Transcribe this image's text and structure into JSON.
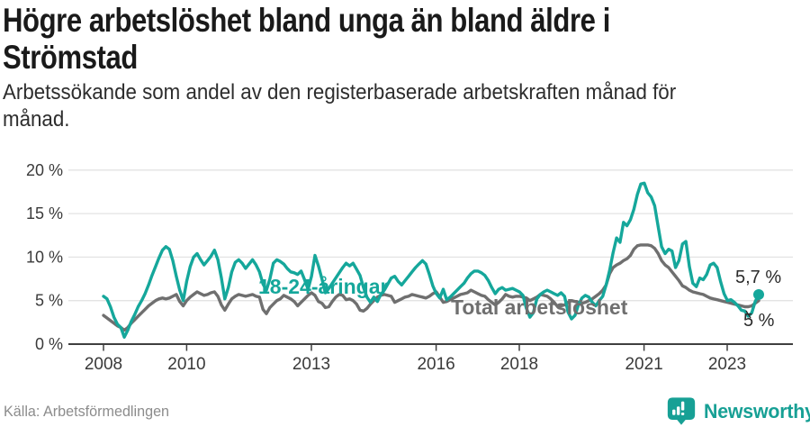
{
  "header": {
    "title": "Högre arbetslöshet bland unga än bland äldre i Strömstad",
    "subtitle": "Arbetssökande som andel av den registerbaserade arbetskraften månad för månad."
  },
  "footer": {
    "source": "Källa: Arbetsförmedlingen",
    "brand": "Newsworthy"
  },
  "colors": {
    "youth": "#15a79b",
    "total": "#6f6f6f",
    "grid": "#e3e3e3",
    "axis": "#3f3f3f",
    "tick_text": "#3a3a3a",
    "annotation_text": "#2b2b2b",
    "brand_teal": "#17a095"
  },
  "chart_data": {
    "type": "line",
    "title": "Högre arbetslöshet bland unga än bland äldre i Strömstad",
    "subtitle": "Arbetssökande som andel av den registerbaserade arbetskraften månad för månad.",
    "x_unit": "month",
    "x_start": "2008-01",
    "x_end": "2023-10",
    "x_tick_years": [
      2008,
      2010,
      2013,
      2016,
      2018,
      2021,
      2023
    ],
    "y_ticks": [
      0,
      5,
      10,
      15,
      20
    ],
    "y_tick_suffix": " %",
    "ylim": [
      0,
      20
    ],
    "grid": true,
    "legend_position": "inline-labels",
    "series": [
      {
        "name": "18-24-åringar",
        "color": "#15a79b",
        "end_label": "5,7 %",
        "end_dot": true,
        "values": [
          5.5,
          5.2,
          4.3,
          3.1,
          2.3,
          1.9,
          0.8,
          1.6,
          2.6,
          3.4,
          4.3,
          5.0,
          5.8,
          6.8,
          7.9,
          8.9,
          9.9,
          10.8,
          11.2,
          10.9,
          9.6,
          7.8,
          6.2,
          5.0,
          7.2,
          8.9,
          10.0,
          10.4,
          9.7,
          9.1,
          9.6,
          10.1,
          10.8,
          9.7,
          7.6,
          5.2,
          6.5,
          8.3,
          9.4,
          9.7,
          9.3,
          8.7,
          9.2,
          9.7,
          9.1,
          8.3,
          6.9,
          6.2,
          7.5,
          9.3,
          9.7,
          9.5,
          9.2,
          8.7,
          8.3,
          8.2,
          8.0,
          8.4,
          7.4,
          6.3,
          7.8,
          10.2,
          9.0,
          7.5,
          5.9,
          6.4,
          7.0,
          7.6,
          8.2,
          8.8,
          9.3,
          9.0,
          9.3,
          8.6,
          7.9,
          6.5,
          5.4,
          4.8,
          5.4,
          4.9,
          5.7,
          6.2,
          6.9,
          7.6,
          7.8,
          7.2,
          6.8,
          7.3,
          7.8,
          8.3,
          8.8,
          9.2,
          9.6,
          9.2,
          8.0,
          6.7,
          5.8,
          5.3,
          6.3,
          5.1,
          5.4,
          5.8,
          6.2,
          6.6,
          7.0,
          7.6,
          8.1,
          8.4,
          8.4,
          8.2,
          7.9,
          7.3,
          6.5,
          5.8,
          6.3,
          6.5,
          6.2,
          6.3,
          6.4,
          6.2,
          6.0,
          5.6,
          4.1,
          3.1,
          3.6,
          5.2,
          5.7,
          6.0,
          6.2,
          6.0,
          5.8,
          5.6,
          5.9,
          5.5,
          3.7,
          2.9,
          3.3,
          4.5,
          5.3,
          5.6,
          5.4,
          4.8,
          4.4,
          5.0,
          5.5,
          6.8,
          8.5,
          10.5,
          12.2,
          11.7,
          14.0,
          13.6,
          14.3,
          15.5,
          17.2,
          18.4,
          18.5,
          17.4,
          16.9,
          15.9,
          13.5,
          11.2,
          10.4,
          10.9,
          10.7,
          8.8,
          9.6,
          11.5,
          11.8,
          8.9,
          7.0,
          6.6,
          7.6,
          7.4,
          8.0,
          9.1,
          9.3,
          8.8,
          7.2,
          5.8,
          5.0,
          5.1,
          4.8,
          4.4,
          3.9,
          3.8,
          3.2,
          3.6,
          4.9,
          5.7
        ]
      },
      {
        "name": "Total arbetslöshet",
        "color": "#6f6f6f",
        "end_label": "5 %",
        "end_dot": false,
        "values": [
          3.3,
          3.0,
          2.7,
          2.4,
          2.1,
          1.9,
          1.6,
          1.9,
          2.4,
          2.8,
          3.2,
          3.6,
          4.0,
          4.4,
          4.7,
          5.0,
          5.2,
          5.3,
          5.2,
          5.3,
          5.5,
          5.7,
          4.9,
          4.4,
          5.0,
          5.4,
          5.7,
          6.0,
          5.8,
          5.6,
          5.7,
          5.9,
          6.0,
          5.5,
          4.5,
          3.9,
          4.6,
          5.2,
          5.5,
          5.7,
          5.6,
          5.5,
          5.6,
          5.7,
          5.5,
          5.4,
          4.0,
          3.5,
          4.2,
          4.6,
          5.0,
          5.2,
          5.6,
          5.4,
          5.2,
          4.9,
          4.4,
          4.8,
          5.2,
          5.6,
          5.9,
          5.6,
          4.9,
          4.7,
          4.2,
          4.3,
          4.9,
          5.4,
          5.7,
          5.6,
          5.1,
          5.2,
          5.0,
          4.6,
          3.9,
          3.8,
          4.1,
          4.6,
          5.0,
          5.4,
          5.6,
          5.7,
          5.6,
          5.5,
          4.8,
          5.0,
          5.2,
          5.4,
          5.5,
          5.7,
          5.6,
          5.5,
          5.4,
          5.3,
          5.5,
          5.8,
          6.0,
          5.4,
          4.8,
          4.9,
          5.1,
          5.3,
          5.5,
          5.7,
          5.8,
          5.9,
          6.2,
          6.0,
          5.8,
          5.6,
          5.5,
          5.1,
          4.8,
          4.5,
          4.8,
          5.2,
          5.7,
          5.5,
          5.4,
          5.5,
          5.5,
          5.4,
          5.3,
          5.0,
          5.2,
          5.4,
          5.7,
          5.6,
          5.5,
          5.2,
          4.8,
          4.3,
          4.4,
          4.5,
          4.8,
          5.0,
          4.9,
          4.8,
          4.7,
          4.8,
          5.0,
          5.2,
          5.5,
          5.8,
          6.2,
          6.8,
          8.1,
          8.8,
          9.1,
          9.3,
          9.6,
          9.8,
          10.2,
          10.9,
          11.3,
          11.4,
          11.4,
          11.4,
          11.3,
          11.0,
          10.4,
          9.6,
          9.1,
          8.8,
          8.3,
          7.8,
          7.3,
          6.7,
          6.5,
          6.2,
          6.0,
          5.9,
          5.8,
          5.7,
          5.5,
          5.3,
          5.2,
          5.1,
          5.0,
          4.9,
          4.8,
          4.7,
          4.6,
          4.5,
          4.4,
          4.3,
          4.3,
          4.4,
          4.7,
          5.0
        ]
      }
    ]
  }
}
